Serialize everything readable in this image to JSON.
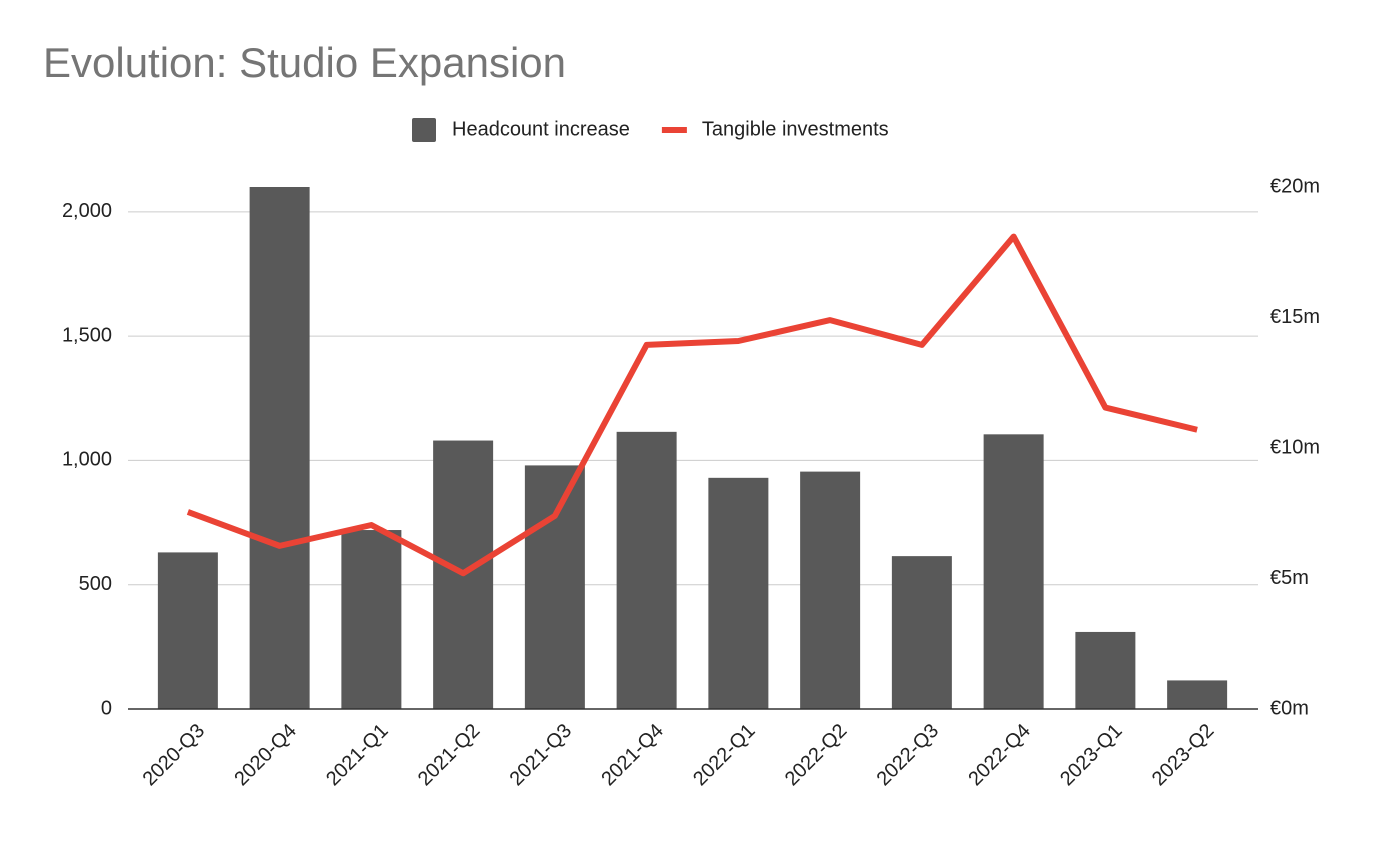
{
  "chart_data": {
    "type": "bar_line",
    "title": "Evolution: Studio Expansion",
    "categories": [
      "2020-Q3",
      "2020-Q4",
      "2021-Q1",
      "2021-Q2",
      "2021-Q3",
      "2021-Q4",
      "2022-Q1",
      "2022-Q2",
      "2022-Q3",
      "2022-Q4",
      "2023-Q1",
      "2023-Q2"
    ],
    "series": [
      {
        "name": "Headcount increase",
        "color": "#595959",
        "type": "bar",
        "values": [
          630,
          2100,
          720,
          1080,
          980,
          1115,
          930,
          955,
          615,
          1105,
          310,
          115
        ]
      },
      {
        "name": "Tangible investments",
        "color": "#ea4335",
        "type": "line",
        "axis": "y2",
        "values": [
          7.55,
          6.25,
          7.05,
          5.2,
          7.4,
          13.95,
          14.1,
          14.9,
          13.95,
          18.1,
          11.55,
          10.7
        ]
      }
    ],
    "ylim": [
      0,
      2100
    ],
    "yticks": [
      0,
      500,
      {
        "value": 1000,
        "label": "1,000"
      },
      {
        "value": 1500,
        "label": "1,500"
      },
      {
        "value": 2000,
        "label": "2,000"
      }
    ],
    "y2lim": [
      0,
      20
    ],
    "y2ticks": [
      {
        "value": 0,
        "label": "€0m"
      },
      {
        "value": 5,
        "label": "€5m"
      },
      {
        "value": 10,
        "label": "€10m"
      },
      {
        "value": 15,
        "label": "€15m"
      },
      {
        "value": 20,
        "label": "€20m"
      }
    ],
    "grid": true,
    "legend": "top"
  }
}
